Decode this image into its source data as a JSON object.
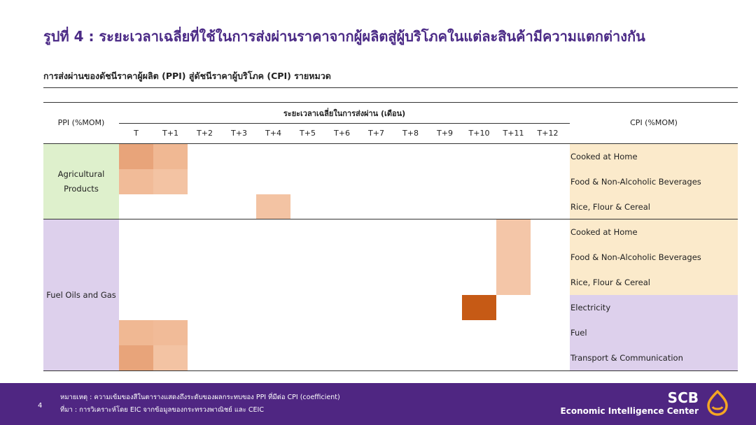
{
  "title": "รูปที่ 4 : ระยะเวลาเฉลี่ยที่ใช้ในการส่งผ่านราคาจากผู้ผลิตสู่ผู้บริโภคในแต่ละสินค้ามีความแตกต่างกัน",
  "subtitle": "การส่งผ่านของดัชนีราคาผู้ผลิต (PPI) สู่ดัชนีราคาผู้บริโภค (CPI) รายหมวด",
  "header": {
    "ppi": "PPI (%MOM)",
    "period": "ระยะเวลาเฉลี่ยในการส่งผ่าน (เดือน)",
    "cpi": "CPI (%MOM)"
  },
  "periods": [
    "T",
    "T+1",
    "T+2",
    "T+3",
    "T+4",
    "T+5",
    "T+6",
    "T+7",
    "T+8",
    "T+9",
    "T+10",
    "T+11",
    "T+12"
  ],
  "groups": {
    "agricultural": {
      "label_line1": "Agricultural",
      "label_line2": "Products",
      "color": "#def0cc"
    },
    "fuel": {
      "label": "Fuel Oils and Gas",
      "color": "#ddd0ec"
    }
  },
  "rows": [
    {
      "cpi": "Cooked at Home",
      "bg": "#fbeacb",
      "cells": [
        {
          "col": 0,
          "color": "#e8a47a"
        },
        {
          "col": 1,
          "color": "#f0b893"
        }
      ]
    },
    {
      "cpi": "Food & Non-Alcoholic Beverages",
      "bg": "#fbeacb",
      "cells": [
        {
          "col": 0,
          "color": "#f1bb98"
        },
        {
          "col": 1,
          "color": "#f3c3a3"
        }
      ]
    },
    {
      "cpi": "Rice, Flour & Cereal",
      "bg": "#fbeacb",
      "cells": [
        {
          "col": 4,
          "color": "#f3c3a3"
        }
      ]
    },
    {
      "cpi": "Cooked at Home",
      "bg": "#fbeacb",
      "cells": [
        {
          "col": 11,
          "color": "#f4c6a8"
        }
      ]
    },
    {
      "cpi": "Food & Non-Alcoholic Beverages",
      "bg": "#fbeacb",
      "cells": [
        {
          "col": 11,
          "color": "#f4c6a8"
        }
      ]
    },
    {
      "cpi": "Rice, Flour & Cereal",
      "bg": "#fbeacb",
      "cells": [
        {
          "col": 11,
          "color": "#f4c6a8"
        }
      ]
    },
    {
      "cpi": "Electricity",
      "bg": "#ddd0ec",
      "cells": [
        {
          "col": 10,
          "color": "#c65a15"
        }
      ]
    },
    {
      "cpi": "Fuel",
      "bg": "#ddd0ec",
      "cells": [
        {
          "col": 0,
          "color": "#f0b893"
        },
        {
          "col": 1,
          "color": "#f1bb98"
        }
      ]
    },
    {
      "cpi": "Transport & Communication",
      "bg": "#ddd0ec",
      "cells": [
        {
          "col": 0,
          "color": "#e8a47a"
        },
        {
          "col": 1,
          "color": "#f3c3a3"
        }
      ]
    }
  ],
  "footer": {
    "page": "4",
    "note": "หมายเหตุ : ความเข้มของสีในตารางแสดงถึงระดับของผลกระทบของ PPI ที่มีต่อ CPI (coefficient)",
    "source": "ที่มา : การวิเคราะห์โดย EIC จากข้อมูลของกระทรวงพาณิชย์ และ CEIC",
    "brand": "SCB",
    "center": "Economic Intelligence Center",
    "bg": "#4f2682",
    "logo_color": "#f5a623"
  }
}
